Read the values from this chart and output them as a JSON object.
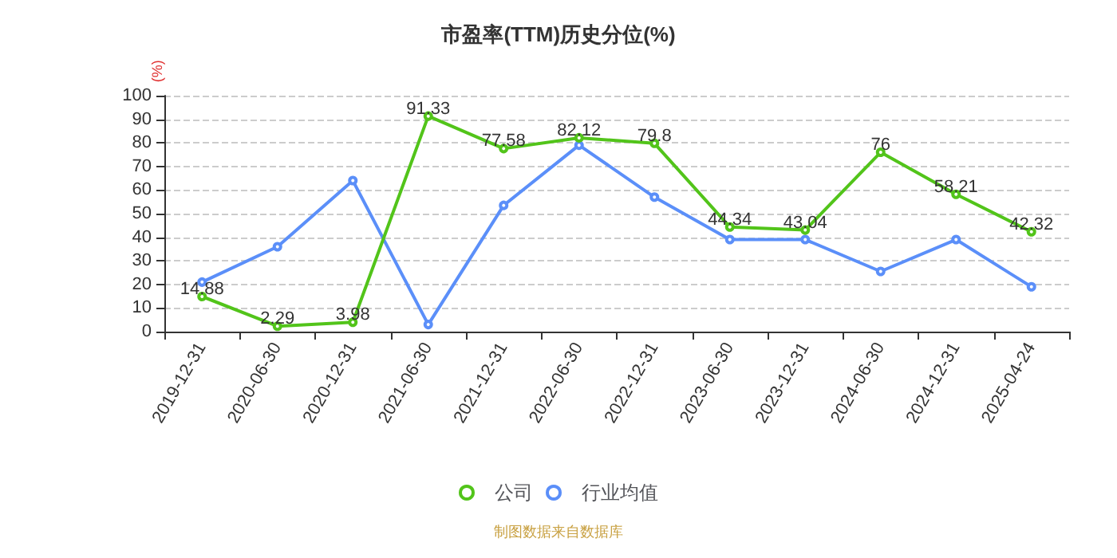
{
  "chart_data": {
    "type": "line",
    "title": "市盈率(TTM)历史分位(%)",
    "ylabel": "(%)",
    "categories": [
      "2019-12-31",
      "2020-06-30",
      "2020-12-31",
      "2021-06-30",
      "2021-12-31",
      "2022-06-30",
      "2022-12-31",
      "2023-06-30",
      "2023-12-31",
      "2024-06-30",
      "2024-12-31",
      "2025-04-24"
    ],
    "series": [
      {
        "name": "公司",
        "color": "#52c41a",
        "values": [
          14.88,
          2.29,
          3.98,
          91.33,
          77.58,
          82.12,
          79.8,
          44.34,
          43.04,
          76,
          58.21,
          42.32
        ],
        "value_labels": [
          "14.88",
          "2.29",
          "3.98",
          "91.33",
          "77.58",
          "82.12",
          "79.8",
          "44.34",
          "43.04",
          "76",
          "58.21",
          "42.32"
        ]
      },
      {
        "name": "行业均值",
        "color": "#5b8ff9",
        "values": [
          21,
          36,
          64,
          3,
          53.5,
          79,
          57,
          39,
          39,
          25.5,
          39,
          19
        ]
      }
    ],
    "ylim": [
      0,
      100
    ],
    "yticks": [
      0,
      10,
      20,
      30,
      40,
      50,
      60,
      70,
      80,
      90,
      100
    ],
    "grid": "y",
    "legend": "bottom",
    "marker": "circle",
    "annotations": [
      "制图数据来自数据库"
    ]
  }
}
